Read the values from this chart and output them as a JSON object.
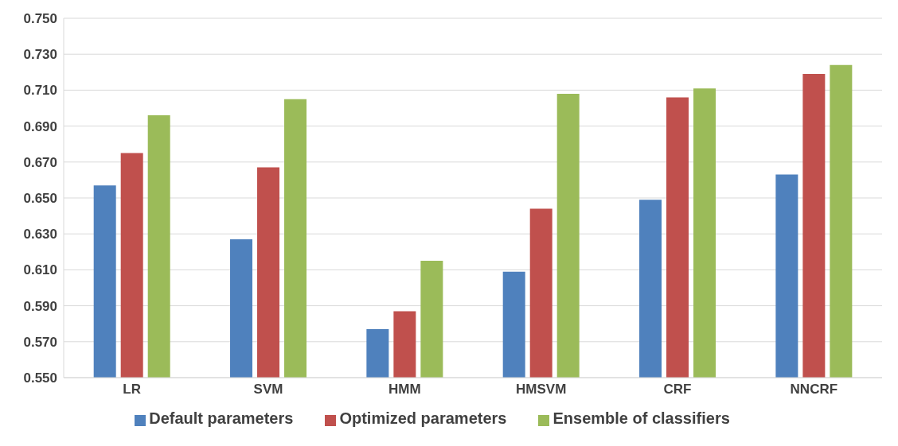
{
  "chart_data": {
    "type": "bar",
    "categories": [
      "LR",
      "SVM",
      "HMM",
      "HMSVM",
      "CRF",
      "NNCRF"
    ],
    "series": [
      {
        "name": "Default parameters",
        "color": "#4f81bd",
        "values": [
          0.657,
          0.627,
          0.577,
          0.609,
          0.649,
          0.663
        ]
      },
      {
        "name": "Optimized parameters",
        "color": "#c0504d",
        "values": [
          0.675,
          0.667,
          0.587,
          0.644,
          0.706,
          0.719
        ]
      },
      {
        "name": "Ensemble of classifiers",
        "color": "#9bbb59",
        "values": [
          0.696,
          0.705,
          0.615,
          0.708,
          0.711,
          0.724
        ]
      }
    ],
    "ylim": [
      0.55,
      0.75
    ],
    "yticks": [
      {
        "value": 0.55,
        "label": "0.550"
      },
      {
        "value": 0.57,
        "label": "0.570"
      },
      {
        "value": 0.59,
        "label": "0.590"
      },
      {
        "value": 0.61,
        "label": "0.610"
      },
      {
        "value": 0.63,
        "label": "0.630"
      },
      {
        "value": 0.65,
        "label": "0.650"
      },
      {
        "value": 0.67,
        "label": "0.670"
      },
      {
        "value": 0.69,
        "label": "0.690"
      },
      {
        "value": 0.71,
        "label": "0.710"
      },
      {
        "value": 0.73,
        "label": "0.730"
      },
      {
        "value": 0.75,
        "label": "0.750"
      }
    ],
    "grid": "y",
    "legend": "bottom"
  }
}
